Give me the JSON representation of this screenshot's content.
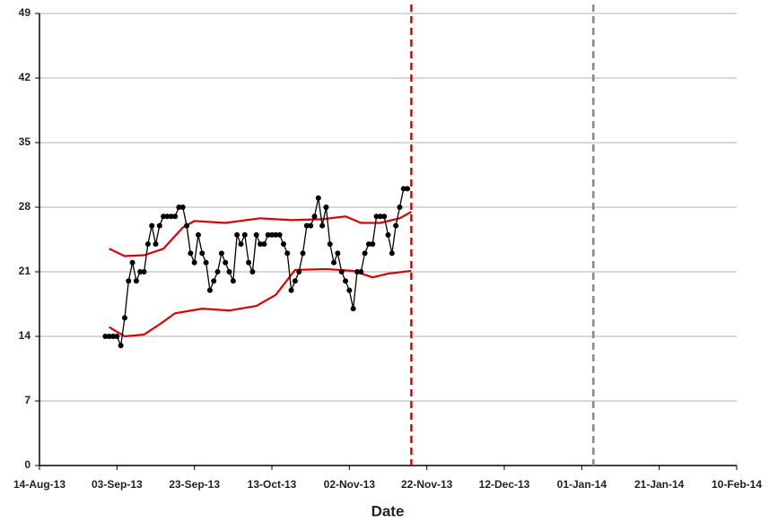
{
  "chart_data": {
    "type": "line",
    "x_label": "Date",
    "xlim": [
      "2013-08-14",
      "2014-02-10"
    ],
    "xticks": [
      {
        "value": "2013-08-14",
        "label": "14-Aug-13"
      },
      {
        "value": "2013-09-03",
        "label": "03-Sep-13"
      },
      {
        "value": "2013-09-23",
        "label": "23-Sep-13"
      },
      {
        "value": "2013-10-13",
        "label": "13-Oct-13"
      },
      {
        "value": "2013-11-02",
        "label": "02-Nov-13"
      },
      {
        "value": "2013-11-22",
        "label": "22-Nov-13"
      },
      {
        "value": "2013-12-12",
        "label": "12-Dec-13"
      },
      {
        "value": "2014-01-01",
        "label": "01-Jan-14"
      },
      {
        "value": "2014-01-21",
        "label": "21-Jan-14"
      },
      {
        "value": "2014-02-10",
        "label": "10-Feb-14"
      }
    ],
    "ylim": [
      0,
      49
    ],
    "yticks": [
      0,
      7,
      14,
      21,
      28,
      35,
      42,
      49
    ],
    "grid": true,
    "series": [
      {
        "color": "#e00000",
        "markers": false,
        "x": [
          "2013-09-01",
          "2013-09-05",
          "2013-09-10",
          "2013-09-15",
          "2013-09-20",
          "2013-09-23",
          "2013-10-01",
          "2013-10-10",
          "2013-10-18",
          "2013-10-26",
          "2013-11-01",
          "2013-11-05",
          "2013-11-10",
          "2013-11-15",
          "2013-11-18"
        ],
        "values": [
          23.5,
          22.7,
          22.8,
          23.5,
          25.8,
          26.5,
          26.3,
          26.8,
          26.6,
          26.7,
          27,
          26.3,
          26.3,
          26.8,
          27.5
        ]
      },
      {
        "color": "#e00000",
        "markers": false,
        "x": [
          "2013-09-01",
          "2013-09-05",
          "2013-09-10",
          "2013-09-14",
          "2013-09-18",
          "2013-09-25",
          "2013-10-02",
          "2013-10-09",
          "2013-10-14",
          "2013-10-19",
          "2013-10-27",
          "2013-11-03",
          "2013-11-08",
          "2013-11-12",
          "2013-11-18"
        ],
        "values": [
          15,
          14,
          14.2,
          15.3,
          16.5,
          17,
          16.8,
          17.3,
          18.5,
          21.2,
          21.3,
          21.1,
          20.4,
          20.8,
          21.1
        ]
      },
      {
        "color": "#000000",
        "markers": true,
        "start": "2013-08-31",
        "values": [
          14,
          14,
          14,
          14,
          13,
          16,
          20,
          22,
          20,
          21,
          21,
          24,
          26,
          24,
          26,
          27,
          27,
          27,
          27,
          28,
          28,
          26,
          23,
          22,
          25,
          23,
          22,
          19,
          20,
          21,
          23,
          22,
          21,
          20,
          25,
          24,
          25,
          22,
          21,
          25,
          24,
          24,
          25,
          25,
          25,
          25,
          24,
          23,
          19,
          20,
          21,
          23,
          26,
          26,
          27,
          29,
          26,
          28,
          24,
          22,
          23,
          21,
          20,
          19,
          17,
          21,
          21,
          23,
          24,
          24,
          27,
          27,
          27,
          25,
          23,
          26,
          28,
          30,
          30
        ]
      }
    ],
    "vlines": [
      {
        "x": "2013-11-18",
        "color": "#e00000"
      },
      {
        "x": "2014-01-04",
        "color": "#888888"
      }
    ]
  }
}
